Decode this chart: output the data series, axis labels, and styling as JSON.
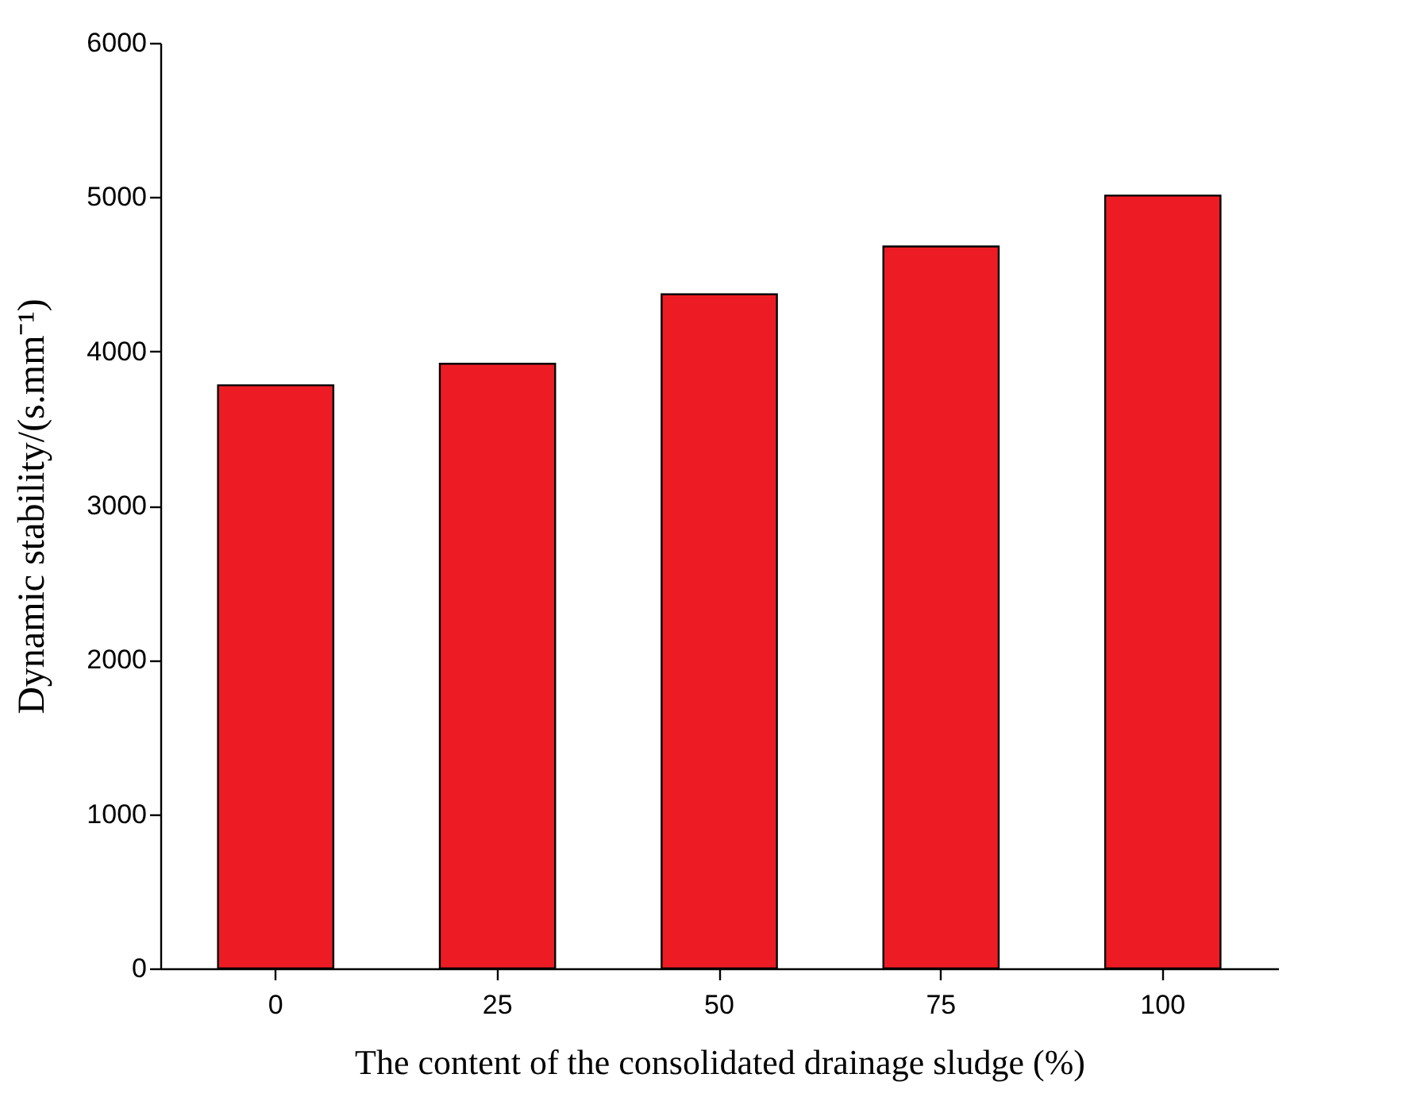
{
  "chart_data": {
    "type": "bar",
    "xlabel": "The content of the consolidated drainage sludge (%)",
    "ylabel": "Dynamic stability/(s.mm⁻¹)",
    "categories": [
      "0",
      "25",
      "50",
      "75",
      "100"
    ],
    "values": [
      3780,
      3920,
      4370,
      4680,
      5010
    ],
    "color": "#ed1c24",
    "ylim": [
      0,
      6000
    ],
    "yticks": [
      0,
      1000,
      2000,
      3000,
      4000,
      5000,
      6000
    ],
    "grid": false
  }
}
